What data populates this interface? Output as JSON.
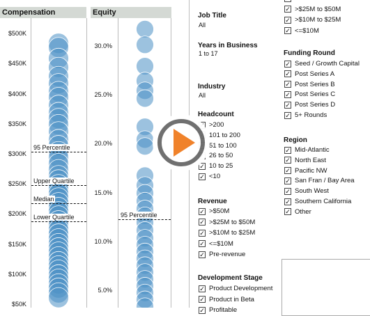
{
  "compensation": {
    "header": "Compensation",
    "y_ticks": [
      "$500K",
      "$450K",
      "$400K",
      "$350K",
      "$300K",
      "$250K",
      "$200K",
      "$150K",
      "$100K",
      "$50K"
    ],
    "ref_lines": [
      "95 Percentile",
      "Upper Quartile",
      "Median",
      "Lower Quartile"
    ]
  },
  "equity": {
    "header": "Equity",
    "y_ticks": [
      "30.0%",
      "25.0%",
      "20.0%",
      "15.0%",
      "10.0%",
      "5.0%"
    ],
    "ref_lines": [
      "95 Percentile"
    ]
  },
  "chart_data": [
    {
      "type": "scatter",
      "title": "Compensation",
      "ylim": [
        50000,
        520000
      ],
      "y_ticks": [
        "$500K",
        "$450K",
        "$400K",
        "$350K",
        "$300K",
        "$250K",
        "$200K",
        "$150K",
        "$100K",
        "$50K"
      ],
      "values": [
        485000,
        478000,
        460000,
        445000,
        430000,
        418000,
        405000,
        395000,
        382000,
        370000,
        360000,
        350000,
        338000,
        325000,
        315000,
        305000,
        295000,
        285000,
        275000,
        265000,
        258000,
        250000,
        242000,
        235000,
        228000,
        220000,
        212000,
        205000,
        198000,
        190000,
        182000,
        175000,
        168000,
        160000,
        152000,
        145000,
        138000,
        130000,
        122000,
        115000,
        108000,
        100000,
        93000,
        85000,
        78000,
        70000,
        62000
      ],
      "reference_lines": [
        {
          "label": "95 Percentile",
          "value": 305000
        },
        {
          "label": "Upper Quartile",
          "value": 249000
        },
        {
          "label": "Median",
          "value": 219000
        },
        {
          "label": "Lower Quartile",
          "value": 189000
        }
      ]
    },
    {
      "type": "scatter",
      "title": "Equity",
      "ylim": [
        3.0,
        32.5
      ],
      "y_ticks": [
        "30.0%",
        "25.0%",
        "20.0%",
        "15.0%",
        "10.0%",
        "5.0%"
      ],
      "values": [
        31.8,
        30.2,
        28.0,
        26.5,
        25.5,
        24.7,
        21.8,
        20.5,
        19.8,
        16.8,
        15.8,
        15.0,
        14.2,
        13.4,
        12.7,
        12.0,
        11.2,
        10.4,
        9.7,
        9.0,
        8.3,
        7.6,
        6.9,
        6.2,
        5.5,
        4.8,
        4.1,
        3.4
      ],
      "reference_lines": [
        {
          "label": "95 Percentile",
          "value": 12.3
        }
      ]
    }
  ],
  "filters": {
    "job_title": {
      "label": "Job Title",
      "value": "All"
    },
    "years_in_business": {
      "label": "Years in Business",
      "value": "1 to 17"
    },
    "industry": {
      "label": "Industry",
      "value": "All"
    },
    "headcount": {
      "label": "Headcount",
      "items": [
        ">200",
        "101 to 200",
        "51 to 100",
        "26 to 50",
        "10 to 25",
        "<10"
      ]
    },
    "revenue": {
      "label": "Revenue",
      "items": [
        ">$50M",
        ">$25M to $50M",
        ">$10M to $25M",
        "<=$10M",
        "Pre-revenue"
      ]
    },
    "development_stage": {
      "label": "Development Stage",
      "items": [
        "Product Development",
        "Product in Beta",
        "Profitable"
      ]
    },
    "revenue_top": {
      "items": [
        "",
        ">$25M to $50M",
        ">$10M to $25M",
        "<=$10M"
      ]
    },
    "funding_round": {
      "label": "Funding Round",
      "items": [
        "Seed / Growth Capital",
        "Post Series A",
        "Post Series B",
        "Post Series C",
        "Post Series D",
        "5+ Rounds"
      ]
    },
    "region": {
      "label": "Region",
      "items": [
        "Mid-Atlantic",
        "North East",
        "Pacific NW",
        "San Fran / Bay Area",
        "South West",
        "Southern California",
        "Other"
      ]
    }
  },
  "checkmark": "✓",
  "colors": {
    "bubble": "#4a90c4",
    "header_bg": "#d4d9d4",
    "play_orange": "#f07d22",
    "play_ring": "#6b6b6b"
  },
  "overlay": {
    "icon": "play-icon"
  }
}
